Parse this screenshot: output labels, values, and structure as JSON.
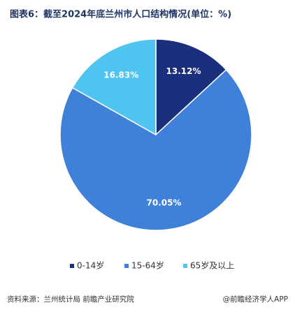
{
  "chart_data": {
    "type": "pie",
    "title": "图表6：截至2024年底兰州市人口结构情况(单位：%)",
    "categories": [
      "0-14岁",
      "15-64岁",
      "65岁及以上"
    ],
    "values": [
      13.12,
      70.05,
      16.83
    ],
    "value_labels": [
      "13.12%",
      "70.05%",
      "16.83%"
    ],
    "colors": [
      "#1b2f7c",
      "#3f80d8",
      "#4fc4f1"
    ],
    "source": "资料来源：兰州统计局 前瞻产业研究院",
    "brand": "@前瞻经济学人APP"
  }
}
